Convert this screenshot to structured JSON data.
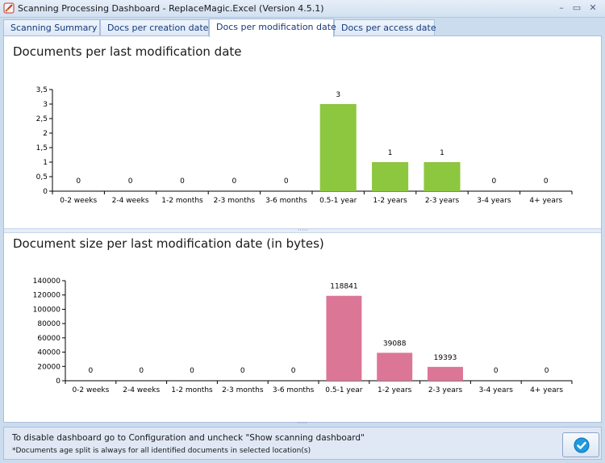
{
  "window": {
    "title": "Scanning Processing Dashboard - ReplaceMagic.Excel (Version 4.5.1)",
    "minimize_glyph": "–",
    "maximize_glyph": "▭",
    "close_glyph": "✕"
  },
  "tabs": [
    {
      "label": "Scanning Summary",
      "active": false
    },
    {
      "label": "Docs per creation date",
      "active": false
    },
    {
      "label": "Docs per modification date",
      "active": true
    },
    {
      "label": "Docs per access date",
      "active": false
    }
  ],
  "panels": {
    "top_title": "Documents per last modification date",
    "bottom_title": "Document size per last modification date (in bytes)"
  },
  "footer": {
    "hint": "To disable dashboard go to Configuration and uncheck \"Show scanning dashboard\"",
    "note": "*Documents age split is always for all identified documents in selected location(s)"
  },
  "colors": {
    "count_bar": "#8dc63f",
    "size_bar": "#dc7696",
    "accent": "#15397a"
  },
  "icons": {
    "app": "replace-magic-app-icon",
    "ok": "check-icon"
  },
  "chart_data": [
    {
      "type": "bar",
      "title": "Documents per last modification date",
      "categories": [
        "0-2 weeks",
        "2-4 weeks",
        "1-2 months",
        "2-3 months",
        "3-6 months",
        "0.5-1 year",
        "1-2 years",
        "2-3 years",
        "3-4 years",
        "4+ years"
      ],
      "values": [
        0,
        0,
        0,
        0,
        0,
        3,
        1,
        1,
        0,
        0
      ],
      "ylim": [
        0,
        3.5
      ],
      "yticks": [
        "0",
        "0,5",
        "1",
        "1,5",
        "2",
        "2,5",
        "3",
        "3,5"
      ],
      "grid": false,
      "legend": "none"
    },
    {
      "type": "bar",
      "title": "Document size per last modification date (in bytes)",
      "categories": [
        "0-2 weeks",
        "2-4 weeks",
        "1-2 months",
        "2-3 months",
        "3-6 months",
        "0.5-1 year",
        "1-2 years",
        "2-3 years",
        "3-4 years",
        "4+ years"
      ],
      "values": [
        0,
        0,
        0,
        0,
        0,
        118841,
        39088,
        19393,
        0,
        0
      ],
      "ylim": [
        0,
        140000
      ],
      "yticks": [
        "0",
        "20000",
        "40000",
        "60000",
        "80000",
        "100000",
        "120000",
        "140000"
      ],
      "grid": false,
      "legend": "none"
    }
  ]
}
